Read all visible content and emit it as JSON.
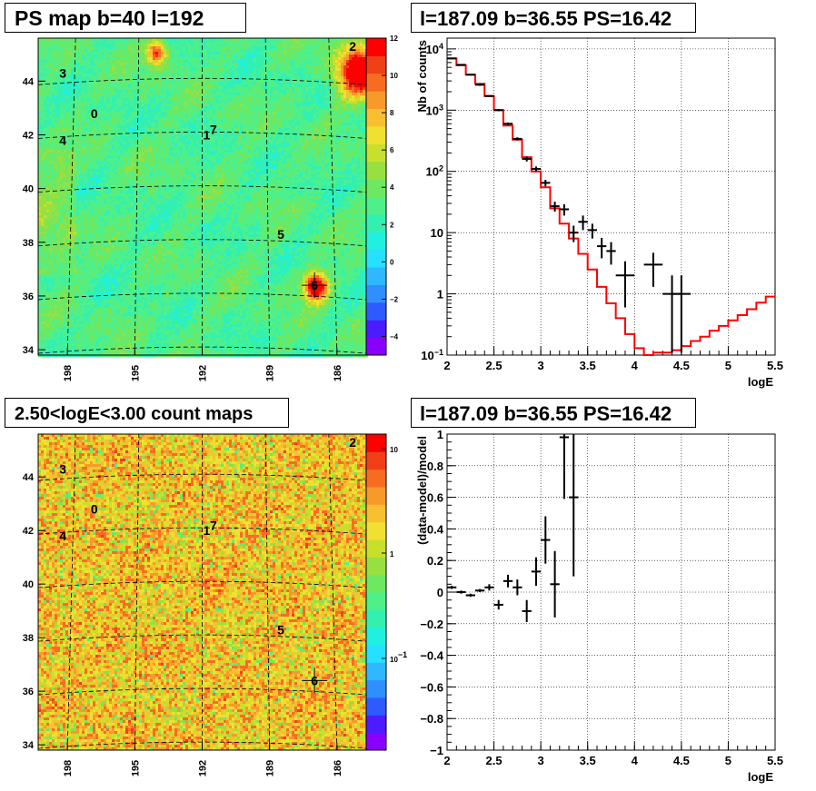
{
  "colors": {
    "palette": [
      "#8a00ff",
      "#4b1cff",
      "#2e5bff",
      "#2f8fff",
      "#2fb8ff",
      "#26e0ff",
      "#1ff0e0",
      "#33f0b0",
      "#4ff08a",
      "#6ee860",
      "#98e040",
      "#c8e02c",
      "#f0e030",
      "#f8c030",
      "#f89a2a",
      "#f86c22",
      "#f04018",
      "#ff0000"
    ],
    "model_line": "#ff0000",
    "data_points": "#000000"
  },
  "chart_data": [
    {
      "id": "ps-map",
      "type": "heatmap",
      "title": "PS map b=40 l=192",
      "x_ticks": [
        "198",
        "195",
        "192",
        "189",
        "186"
      ],
      "y_ticks": [
        "34",
        "36",
        "38",
        "40",
        "42",
        "44"
      ],
      "xlim": [
        199.3,
        184.7
      ],
      "ylim": [
        33.8,
        45.6
      ],
      "colorbar_ticks": [
        "12",
        "10",
        "8",
        "6",
        "4",
        "2",
        "0",
        "−2",
        "−4"
      ],
      "colorbar_range": [
        -5,
        12
      ],
      "background_level": 3,
      "sources": [
        {
          "label": "0",
          "l": 196.8,
          "b": 42.8
        },
        {
          "label": "1",
          "l": 191.8,
          "b": 42.0
        },
        {
          "label": "2",
          "l": 185.3,
          "b": 45.3
        },
        {
          "label": "3",
          "l": 198.2,
          "b": 44.3
        },
        {
          "label": "4",
          "l": 198.2,
          "b": 41.8
        },
        {
          "label": "5",
          "l": 188.5,
          "b": 38.3
        },
        {
          "label": "6",
          "l": 187.0,
          "b": 36.4
        },
        {
          "label": "7",
          "l": 191.5,
          "b": 42.2
        }
      ],
      "hotspots": [
        {
          "l": 185.1,
          "b": 44.4,
          "v": 12,
          "r": 0.9
        },
        {
          "l": 194.1,
          "b": 45.1,
          "v": 8,
          "r": 0.45
        },
        {
          "l": 187.0,
          "b": 36.4,
          "v": 12,
          "r": 0.5
        }
      ]
    },
    {
      "id": "spectrum",
      "type": "line",
      "title": "l=187.09 b=36.55 PS=16.42",
      "xlabel": "logE",
      "ylabel": "Nb of counts",
      "xlim": [
        2,
        5.5
      ],
      "ylim": [
        0.1,
        15000
      ],
      "log_y": true,
      "grid": true,
      "x_ticks": [
        "2",
        "2.5",
        "3",
        "3.5",
        "4",
        "4.5",
        "5",
        "5.5"
      ],
      "y_ticks": [
        {
          "value": 0.1,
          "base": "10",
          "exp": "−1"
        },
        {
          "value": 1,
          "base": "1",
          "exp": ""
        },
        {
          "value": 10,
          "base": "10",
          "exp": ""
        },
        {
          "value": 100,
          "base": "10",
          "exp": "2"
        },
        {
          "value": 1000,
          "base": "10",
          "exp": "3"
        },
        {
          "value": 10000,
          "base": "10",
          "exp": "4"
        }
      ],
      "model": [
        {
          "x0": 2.0,
          "x1": 2.1,
          "y": 7000
        },
        {
          "x0": 2.1,
          "x1": 2.2,
          "y": 5400
        },
        {
          "x0": 2.2,
          "x1": 2.3,
          "y": 3800
        },
        {
          "x0": 2.3,
          "x1": 2.4,
          "y": 2700
        },
        {
          "x0": 2.4,
          "x1": 2.5,
          "y": 1700
        },
        {
          "x0": 2.5,
          "x1": 2.6,
          "y": 1000
        },
        {
          "x0": 2.6,
          "x1": 2.7,
          "y": 560
        },
        {
          "x0": 2.7,
          "x1": 2.8,
          "y": 330
        },
        {
          "x0": 2.8,
          "x1": 2.9,
          "y": 170
        },
        {
          "x0": 2.9,
          "x1": 3.0,
          "y": 100
        },
        {
          "x0": 3.0,
          "x1": 3.1,
          "y": 55
        },
        {
          "x0": 3.1,
          "x1": 3.2,
          "y": 25
        },
        {
          "x0": 3.2,
          "x1": 3.3,
          "y": 14
        },
        {
          "x0": 3.3,
          "x1": 3.4,
          "y": 8
        },
        {
          "x0": 3.4,
          "x1": 3.5,
          "y": 4.5
        },
        {
          "x0": 3.5,
          "x1": 3.6,
          "y": 2.5
        },
        {
          "x0": 3.6,
          "x1": 3.7,
          "y": 1.3
        },
        {
          "x0": 3.7,
          "x1": 3.8,
          "y": 0.7
        },
        {
          "x0": 3.8,
          "x1": 3.9,
          "y": 0.4
        },
        {
          "x0": 3.9,
          "x1": 4.0,
          "y": 0.22
        },
        {
          "x0": 4.0,
          "x1": 4.1,
          "y": 0.13
        },
        {
          "x0": 4.1,
          "x1": 4.2,
          "y": 0.1
        },
        {
          "x0": 4.2,
          "x1": 4.3,
          "y": 0.11
        },
        {
          "x0": 4.3,
          "x1": 4.4,
          "y": 0.11
        },
        {
          "x0": 4.4,
          "x1": 4.5,
          "y": 0.12
        },
        {
          "x0": 4.5,
          "x1": 4.6,
          "y": 0.14
        },
        {
          "x0": 4.6,
          "x1": 4.7,
          "y": 0.17
        },
        {
          "x0": 4.7,
          "x1": 4.8,
          "y": 0.2
        },
        {
          "x0": 4.8,
          "x1": 4.9,
          "y": 0.25
        },
        {
          "x0": 4.9,
          "x1": 5.0,
          "y": 0.3
        },
        {
          "x0": 5.0,
          "x1": 5.1,
          "y": 0.37
        },
        {
          "x0": 5.1,
          "x1": 5.2,
          "y": 0.45
        },
        {
          "x0": 5.2,
          "x1": 5.3,
          "y": 0.56
        },
        {
          "x0": 5.3,
          "x1": 5.4,
          "y": 0.72
        },
        {
          "x0": 5.4,
          "x1": 5.5,
          "y": 0.9
        }
      ],
      "points": [
        {
          "x": 2.05,
          "xe": 0.05,
          "y": 7000,
          "yl": 6900,
          "yh": 7100
        },
        {
          "x": 2.15,
          "xe": 0.05,
          "y": 5500,
          "yl": 5400,
          "yh": 5600
        },
        {
          "x": 2.25,
          "xe": 0.05,
          "y": 3800,
          "yl": 3700,
          "yh": 3900
        },
        {
          "x": 2.35,
          "xe": 0.05,
          "y": 2600,
          "yl": 2500,
          "yh": 2700
        },
        {
          "x": 2.45,
          "xe": 0.05,
          "y": 1700,
          "yl": 1650,
          "yh": 1750
        },
        {
          "x": 2.55,
          "xe": 0.05,
          "y": 1000,
          "yl": 960,
          "yh": 1040
        },
        {
          "x": 2.65,
          "xe": 0.05,
          "y": 600,
          "yl": 570,
          "yh": 630
        },
        {
          "x": 2.75,
          "xe": 0.05,
          "y": 340,
          "yl": 320,
          "yh": 360
        },
        {
          "x": 2.85,
          "xe": 0.05,
          "y": 160,
          "yl": 145,
          "yh": 175
        },
        {
          "x": 2.95,
          "xe": 0.05,
          "y": 110,
          "yl": 100,
          "yh": 120
        },
        {
          "x": 3.05,
          "xe": 0.05,
          "y": 65,
          "yl": 57,
          "yh": 73
        },
        {
          "x": 3.15,
          "xe": 0.05,
          "y": 27,
          "yl": 22,
          "yh": 32
        },
        {
          "x": 3.25,
          "xe": 0.05,
          "y": 24,
          "yl": 19,
          "yh": 29
        },
        {
          "x": 3.35,
          "xe": 0.05,
          "y": 10,
          "yl": 7,
          "yh": 13
        },
        {
          "x": 3.45,
          "xe": 0.05,
          "y": 15,
          "yl": 11,
          "yh": 19
        },
        {
          "x": 3.55,
          "xe": 0.05,
          "y": 11,
          "yl": 8,
          "yh": 14
        },
        {
          "x": 3.65,
          "xe": 0.05,
          "y": 6,
          "yl": 3.8,
          "yh": 8.2
        },
        {
          "x": 3.75,
          "xe": 0.05,
          "y": 5,
          "yl": 3,
          "yh": 7
        },
        {
          "x": 3.9,
          "xe": 0.1,
          "y": 2,
          "yl": 0.6,
          "yh": 3.4
        },
        {
          "x": 4.2,
          "xe": 0.1,
          "y": 3,
          "yl": 1.3,
          "yh": 4.7
        },
        {
          "x": 4.4,
          "xe": 0.1,
          "y": 1,
          "yl": 0.11,
          "yh": 2
        },
        {
          "x": 4.5,
          "xe": 0.1,
          "y": 1,
          "yl": 0.11,
          "yh": 2
        }
      ]
    },
    {
      "id": "count-map",
      "type": "heatmap",
      "title": "2.50<logE<3.00 count maps",
      "x_ticks": [
        "198",
        "195",
        "192",
        "189",
        "186"
      ],
      "y_ticks": [
        "34",
        "36",
        "38",
        "40",
        "42",
        "44"
      ],
      "xlim": [
        199.3,
        184.7
      ],
      "ylim": [
        33.8,
        45.6
      ],
      "colorbar_ticks": [
        {
          "base": "10",
          "exp": ""
        },
        {
          "base": "1",
          "exp": ""
        },
        {
          "base": "10",
          "exp": "−1"
        }
      ],
      "log_scale": true,
      "sources": [
        {
          "label": "0",
          "l": 196.8,
          "b": 42.8
        },
        {
          "label": "1",
          "l": 191.8,
          "b": 42.0
        },
        {
          "label": "2",
          "l": 185.3,
          "b": 45.3
        },
        {
          "label": "3",
          "l": 198.2,
          "b": 44.3
        },
        {
          "label": "4",
          "l": 198.2,
          "b": 41.8
        },
        {
          "label": "5",
          "l": 188.5,
          "b": 38.3
        },
        {
          "label": "6",
          "l": 187.0,
          "b": 36.4
        },
        {
          "label": "7",
          "l": 191.5,
          "b": 42.2
        }
      ]
    },
    {
      "id": "residuals",
      "type": "scatter",
      "title": "l=187.09 b=36.55 PS=16.42",
      "xlabel": "logE",
      "ylabel": "(data-model)/model",
      "xlim": [
        2,
        5.5
      ],
      "ylim": [
        -1,
        1
      ],
      "grid": true,
      "x_ticks": [
        "2",
        "2.5",
        "3",
        "3.5",
        "4",
        "4.5",
        "5",
        "5.5"
      ],
      "y_ticks": [
        "−1",
        "−0.8",
        "−0.6",
        "−0.4",
        "−0.2",
        "0",
        "0.2",
        "0.4",
        "0.6",
        "0.8",
        "1"
      ],
      "points": [
        {
          "x": 2.05,
          "xe": 0.05,
          "y": 0.03,
          "yl": 0.02,
          "yh": 0.04
        },
        {
          "x": 2.15,
          "xe": 0.05,
          "y": 0.0,
          "yl": -0.01,
          "yh": 0.01
        },
        {
          "x": 2.25,
          "xe": 0.05,
          "y": -0.02,
          "yl": -0.03,
          "yh": -0.01
        },
        {
          "x": 2.35,
          "xe": 0.05,
          "y": 0.01,
          "yl": 0.0,
          "yh": 0.02
        },
        {
          "x": 2.45,
          "xe": 0.05,
          "y": 0.03,
          "yl": 0.01,
          "yh": 0.05
        },
        {
          "x": 2.55,
          "xe": 0.05,
          "y": -0.08,
          "yl": -0.11,
          "yh": -0.05
        },
        {
          "x": 2.65,
          "xe": 0.05,
          "y": 0.07,
          "yl": 0.03,
          "yh": 0.11
        },
        {
          "x": 2.75,
          "xe": 0.05,
          "y": 0.03,
          "yl": -0.02,
          "yh": 0.08
        },
        {
          "x": 2.85,
          "xe": 0.05,
          "y": -0.12,
          "yl": -0.19,
          "yh": -0.05
        },
        {
          "x": 2.95,
          "xe": 0.05,
          "y": 0.13,
          "yl": 0.04,
          "yh": 0.22
        },
        {
          "x": 3.05,
          "xe": 0.05,
          "y": 0.33,
          "yl": 0.18,
          "yh": 0.48
        },
        {
          "x": 3.15,
          "xe": 0.05,
          "y": 0.05,
          "yl": -0.16,
          "yh": 0.26
        },
        {
          "x": 3.25,
          "xe": 0.05,
          "y": 0.98,
          "yl": 0.59,
          "yh": 1.0
        },
        {
          "x": 3.35,
          "xe": 0.05,
          "y": 0.6,
          "yl": 0.1,
          "yh": 1.0
        }
      ]
    }
  ]
}
